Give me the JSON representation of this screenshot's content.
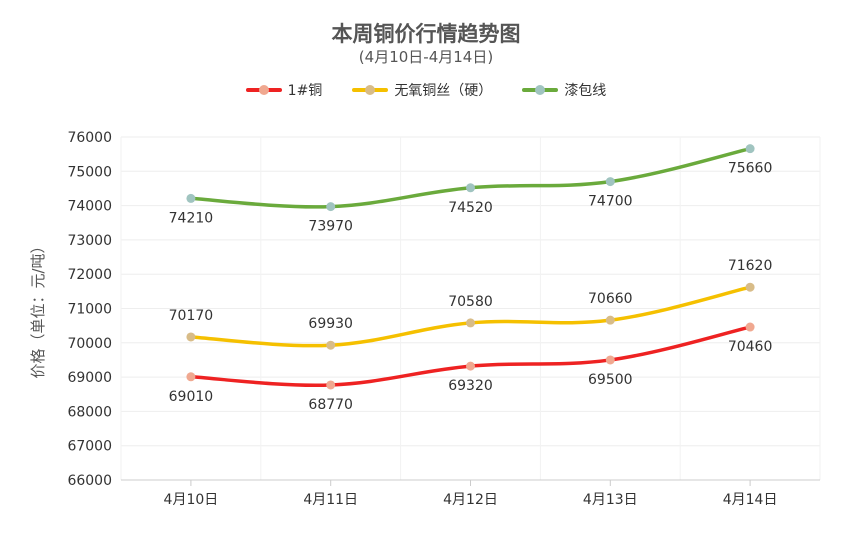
{
  "chart_data": {
    "type": "line",
    "title": "本周铜价行情趋势图",
    "subtitle": "(4月10日-4月14日)",
    "ylabel": "价格（单位：元/吨）",
    "xlabel": "",
    "categories": [
      "4月10日",
      "4月11日",
      "4月12日",
      "4月13日",
      "4月14日"
    ],
    "ylim": [
      66000,
      76000
    ],
    "yticks": [
      66000,
      67000,
      68000,
      69000,
      70000,
      71000,
      72000,
      73000,
      74000,
      75000,
      76000
    ],
    "grid": true,
    "legend_position": "top-center",
    "series": [
      {
        "name": "1#铜",
        "values": [
          69010,
          68770,
          69320,
          69500,
          70460
        ],
        "color": "#ee2222",
        "marker_color": "#f0a890",
        "label_pos": [
          "below",
          "below",
          "below",
          "below",
          "below"
        ]
      },
      {
        "name": "无氧铜丝（硬）",
        "values": [
          70170,
          69930,
          70580,
          70660,
          71620
        ],
        "color": "#f5c000",
        "marker_color": "#d8bc88",
        "label_pos": [
          "above",
          "above",
          "above",
          "above",
          "above"
        ]
      },
      {
        "name": "漆包线",
        "values": [
          74210,
          73970,
          74520,
          74700,
          75660
        ],
        "color": "#6aaa3c",
        "marker_color": "#a0c4c0",
        "label_pos": [
          "below",
          "below",
          "below",
          "below",
          "below"
        ]
      }
    ]
  }
}
